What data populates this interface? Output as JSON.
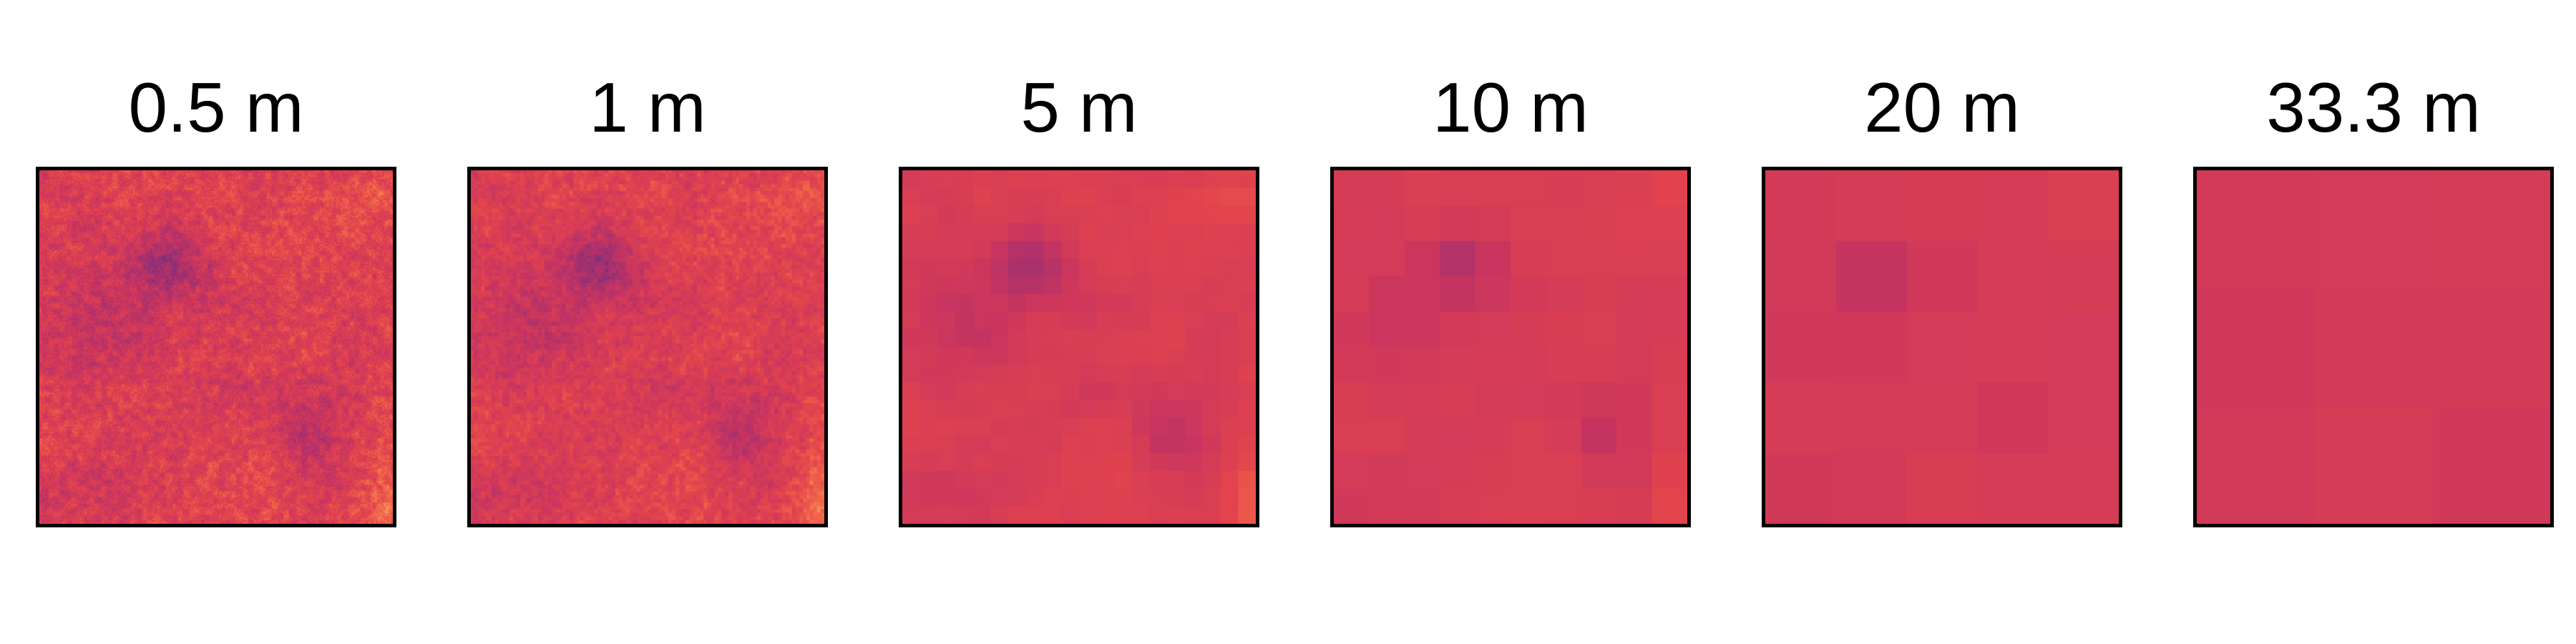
{
  "panels": [
    {
      "label": "0.5 m"
    },
    {
      "label": "1 m"
    },
    {
      "label": "5 m"
    },
    {
      "label": "10 m"
    },
    {
      "label": "20 m"
    },
    {
      "label": "33.3 m"
    }
  ],
  "colormap": [
    "#4b2e86",
    "#70307f",
    "#a3306f",
    "#c9355f",
    "#e2434d",
    "#f26a4a",
    "#f7a36a"
  ]
}
